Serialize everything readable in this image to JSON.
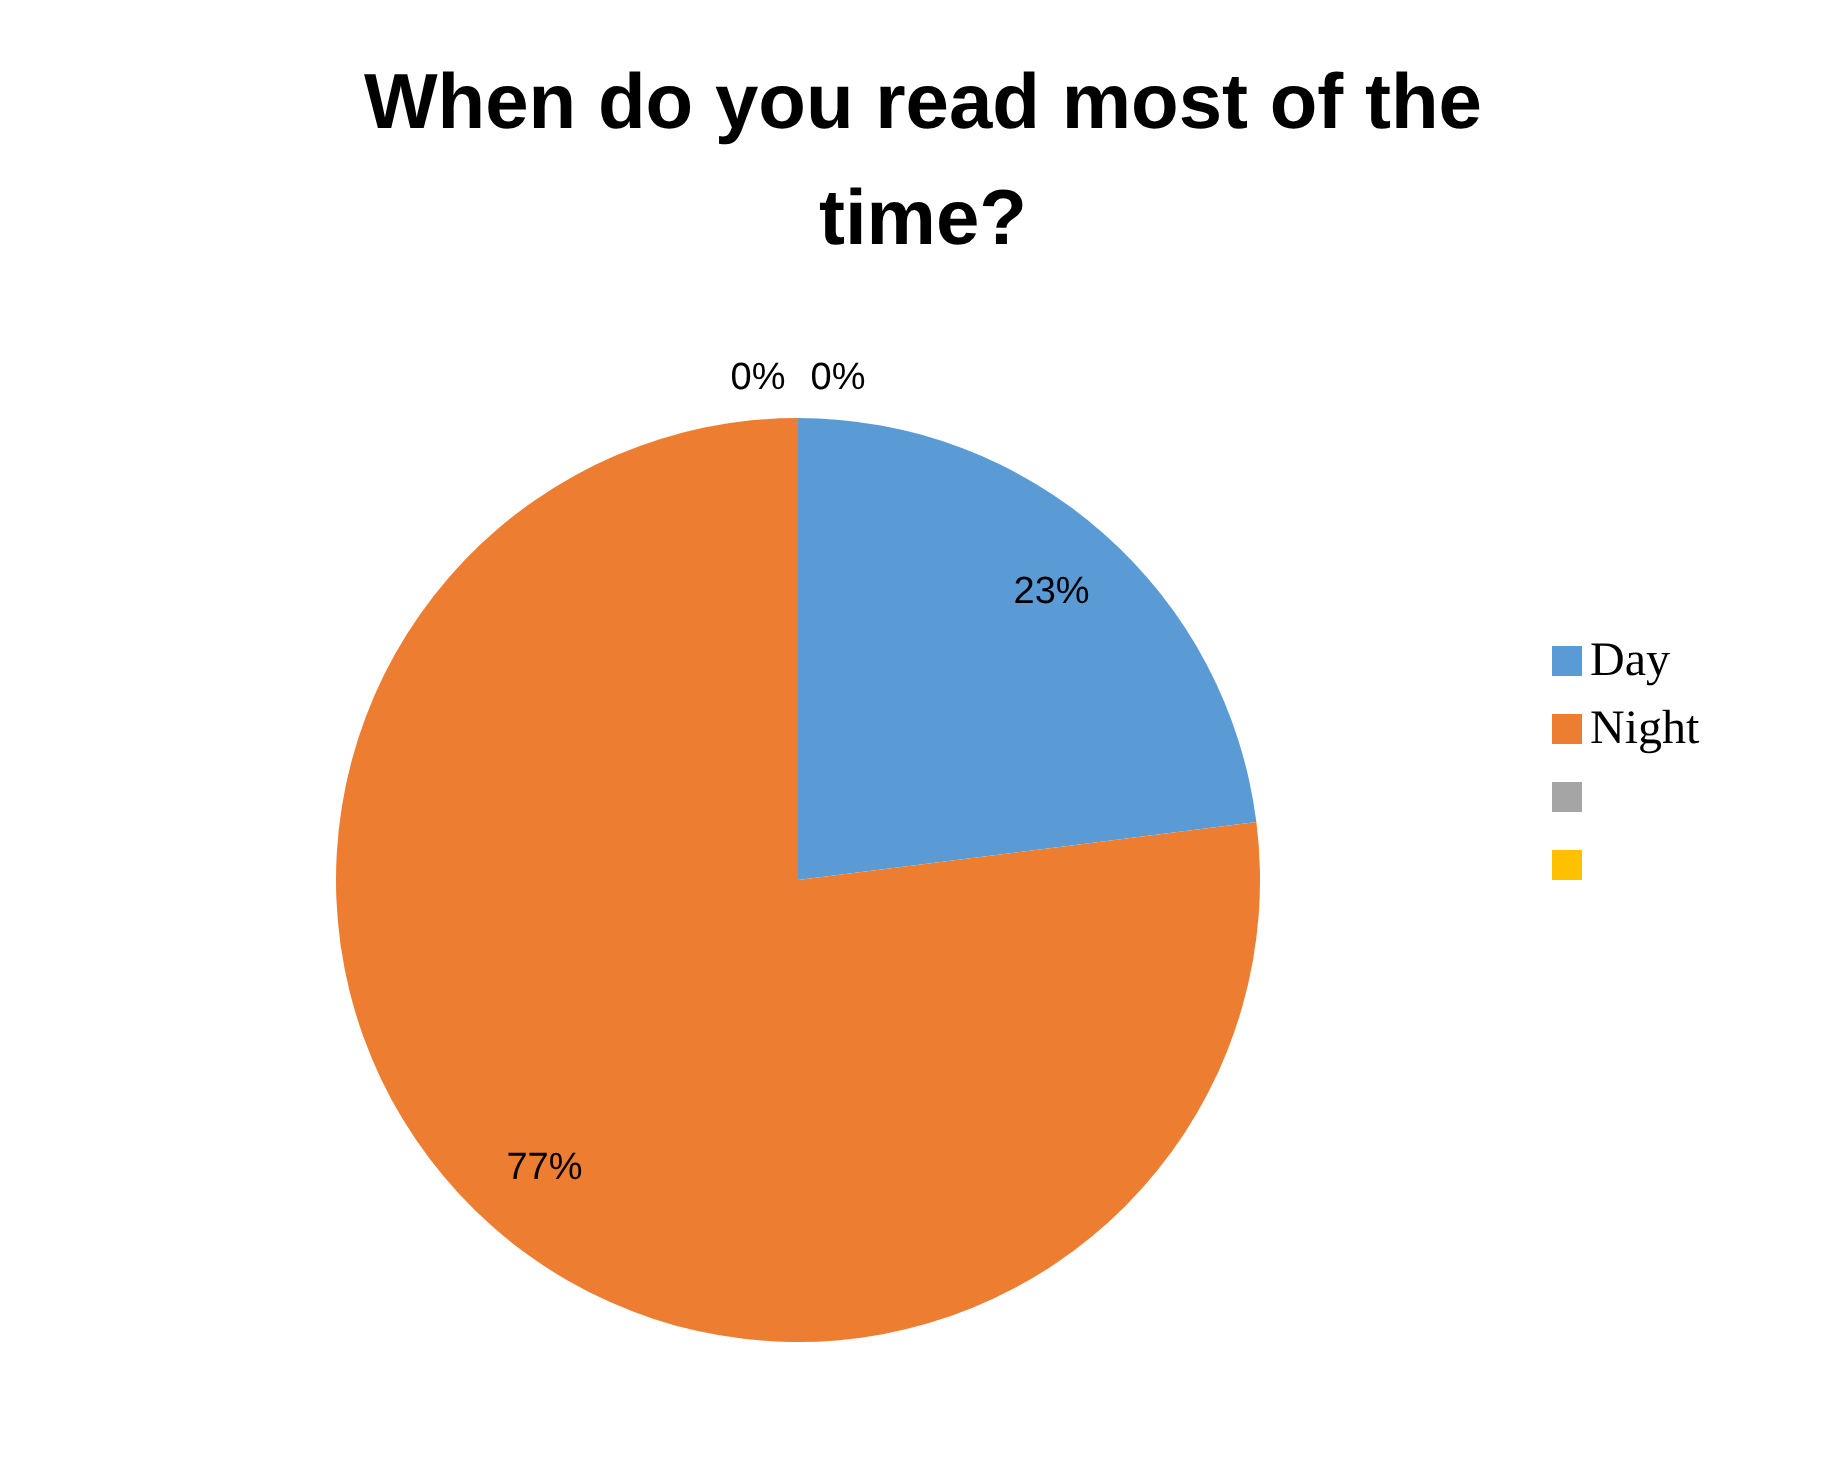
{
  "chart_data": {
    "type": "pie",
    "title": "When do you read most of the time?",
    "categories": [
      "Day",
      "Night",
      null,
      null
    ],
    "values": [
      23,
      77,
      0,
      0
    ],
    "colors": [
      "#5b9bd5",
      "#ed7d31",
      "#a5a5a5",
      "#ffc000"
    ],
    "value_labels": [
      "23%",
      "77%",
      "0%",
      "0%"
    ],
    "legend": "right"
  }
}
